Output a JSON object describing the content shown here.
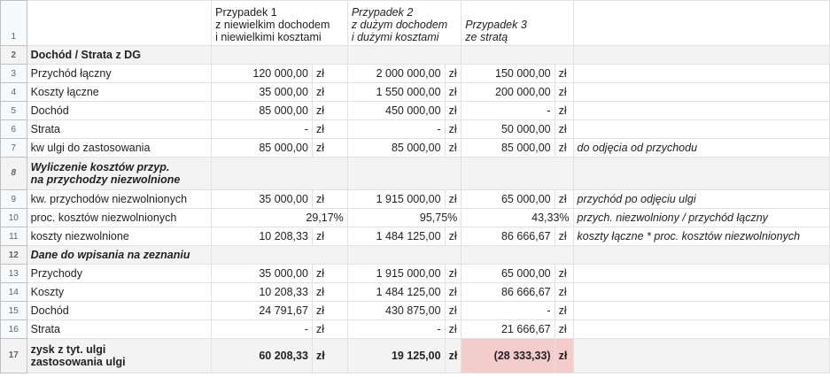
{
  "headers": {
    "case1": [
      "Przypadek 1",
      "z niewielkim dochodem",
      "i niewielkimi kosztami"
    ],
    "case2": [
      "Przypadek 2",
      "z dużym dochodem",
      "i dużymi kosztami"
    ],
    "case3": [
      "Przypadek 3",
      "ze stratą"
    ]
  },
  "currency": "zł",
  "rows": {
    "r2": {
      "label": "Dochód / Strata z DG"
    },
    "r3": {
      "label": "Przychód łączny",
      "c1": "120 000,00",
      "c2": "2 000 000,00",
      "c3": "150 000,00"
    },
    "r4": {
      "label": "Koszty łączne",
      "c1": "35 000,00",
      "c2": "1 550 000,00",
      "c3": "200 000,00"
    },
    "r5": {
      "label": "Dochód",
      "c1": "85 000,00",
      "c2": "450 000,00",
      "c3": "-"
    },
    "r6": {
      "label": "Strata",
      "c1": "-",
      "c2": "-",
      "c3": "50 000,00"
    },
    "r7": {
      "label": "kw ulgi do zastosowania",
      "c1": "85 000,00",
      "c2": "85 000,00",
      "c3": "85 000,00",
      "note": "do odjęcia od przychodu"
    },
    "r8": {
      "line1": "Wyliczenie kosztów przyp.",
      "line2": "na przychodzy niezwolnione"
    },
    "r9": {
      "label": "kw. przychodów niezwolnionych",
      "c1": "35 000,00",
      "c2": "1 915 000,00",
      "c3": "65 000,00",
      "note": "przychód po odjęciu ulgi"
    },
    "r10": {
      "label": "proc. kosztów niezwolnionych",
      "c1": "29,17%",
      "c2": "95,75%",
      "c3": "43,33%",
      "note": "przych. niezwolniony / przychód łączny"
    },
    "r11": {
      "label": "koszty niezwolnione",
      "c1": "10 208,33",
      "c2": "1 484 125,00",
      "c3": "86 666,67",
      "note": "koszty łączne * proc. kosztów niezwolnionych"
    },
    "r12": {
      "label": "Dane do wpisania na zeznaniu"
    },
    "r13": {
      "label": "Przychody",
      "c1": "35 000,00",
      "c2": "1 915 000,00",
      "c3": "65 000,00"
    },
    "r14": {
      "label": "Koszty",
      "c1": "10 208,33",
      "c2": "1 484 125,00",
      "c3": "86 666,67"
    },
    "r15": {
      "label": "Dochód",
      "c1": "24 791,67",
      "c2": "430 875,00",
      "c3": "-"
    },
    "r16": {
      "label": "Strata",
      "c1": "-",
      "c2": "-",
      "c3": "21 666,67"
    },
    "r17": {
      "line1": "zysk z tyt. ulgi",
      "line2": "zastosowania ulgi",
      "c1": "60 208,33",
      "c2": "19 125,00",
      "c3": "(28 333,33)"
    }
  },
  "row_numbers": [
    "1",
    "2",
    "3",
    "4",
    "5",
    "6",
    "7",
    "8",
    "9",
    "10",
    "11",
    "12",
    "13",
    "14",
    "15",
    "16",
    "17"
  ]
}
